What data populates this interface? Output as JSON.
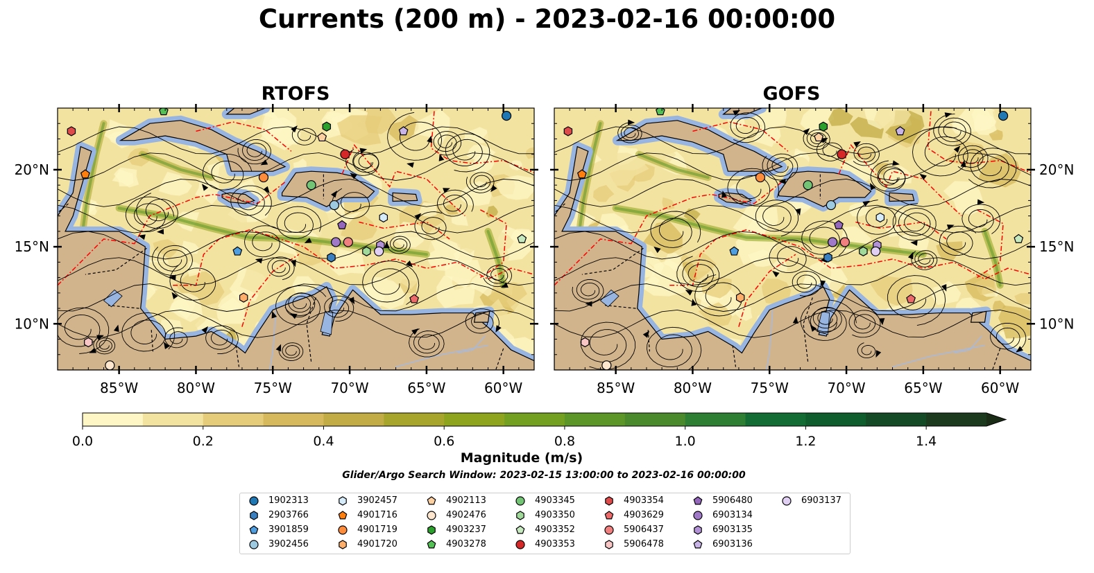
{
  "title": "Currents (200 m) - 2023-02-16 00:00:00",
  "panels": [
    {
      "title": "RTOFS"
    },
    {
      "title": "GOFS"
    }
  ],
  "colors": {
    "ocean_scale": [
      "#fef6c4",
      "#f3e3a0",
      "#e5cc7a",
      "#d6b95c",
      "#c2ac45",
      "#a8a52c",
      "#8ea41e",
      "#74a022",
      "#5c9528",
      "#4a8a2c",
      "#2e7f34",
      "#146c35",
      "#0f5c2c",
      "#154a26",
      "#1c3a1e",
      "#1a2b16"
    ],
    "land": "#d2b48c",
    "shallow": "#98b4e0",
    "eez": "#ff0000",
    "river": "#a9b9d8"
  },
  "chart_data": {
    "type": "map",
    "projection": "PlateCarree",
    "extent": {
      "lon": [
        -89,
        -58
      ],
      "lat": [
        7,
        24
      ]
    },
    "x_ticks": [
      "85°W",
      "80°W",
      "75°W",
      "70°W",
      "65°W",
      "60°W"
    ],
    "x_tick_values": [
      -85,
      -80,
      -75,
      -70,
      -65,
      -60
    ],
    "y_ticks": [
      "20°N",
      "15°N",
      "10°N"
    ],
    "y_tick_values": [
      20,
      15,
      10
    ],
    "colorbar": {
      "label": "Magnitude (m/s)",
      "range": [
        0,
        1.5
      ],
      "step": 0.1,
      "ticks": [
        "0.0",
        "0.2",
        "0.4",
        "0.6",
        "0.8",
        "1.0",
        "1.2",
        "1.4"
      ],
      "tick_values": [
        0,
        0.2,
        0.4,
        0.6,
        0.8,
        1.0,
        1.2,
        1.4
      ],
      "extend": "max"
    },
    "search_window": "Glider/Argo Search Window: 2023-02-15 13:00:00 to 2023-02-16 00:00:00",
    "floats": [
      {
        "id": "1902313",
        "marker": "circle",
        "color": "#1f77b4",
        "lon": -59.8,
        "lat": 23.5
      },
      {
        "id": "2903766",
        "marker": "hexagon",
        "color": "#3a7fc0",
        "lon": -71.2,
        "lat": 14.3
      },
      {
        "id": "3901859",
        "marker": "pentagon",
        "color": "#4f9fe0",
        "lon": -77.3,
        "lat": 14.7
      },
      {
        "id": "3902456",
        "marker": "circle",
        "color": "#9ecae1",
        "lon": -71.0,
        "lat": 17.7
      },
      {
        "id": "3902457",
        "marker": "hexagon",
        "color": "#d6ecfa",
        "lon": -67.8,
        "lat": 16.9
      },
      {
        "id": "4901716",
        "marker": "pentagon",
        "color": "#ff7f0e",
        "lon": -87.2,
        "lat": 19.7
      },
      {
        "id": "4901719",
        "marker": "circle",
        "color": "#fd8d3c",
        "lon": -75.6,
        "lat": 19.5
      },
      {
        "id": "4901720",
        "marker": "hexagon",
        "color": "#fdae6b",
        "lon": -76.9,
        "lat": 11.7
      },
      {
        "id": "4902113",
        "marker": "pentagon",
        "color": "#fdd0a2",
        "lon": -71.8,
        "lat": 22.1
      },
      {
        "id": "4902476",
        "marker": "circle",
        "color": "#fee6ce",
        "lon": -85.6,
        "lat": 7.3
      },
      {
        "id": "4903237",
        "marker": "hexagon",
        "color": "#2ca02c",
        "lon": -71.5,
        "lat": 22.8
      },
      {
        "id": "4903278",
        "marker": "pentagon",
        "color": "#55c055",
        "lon": -82.1,
        "lat": 23.8
      },
      {
        "id": "4903345",
        "marker": "circle",
        "color": "#74c476",
        "lon": -72.5,
        "lat": 19.0
      },
      {
        "id": "4903350",
        "marker": "hexagon",
        "color": "#a1d99b",
        "lon": -68.9,
        "lat": 14.7
      },
      {
        "id": "4903352",
        "marker": "pentagon",
        "color": "#c7e9c0",
        "lon": -58.8,
        "lat": 15.5
      },
      {
        "id": "4903353",
        "marker": "circle",
        "color": "#d62728",
        "lon": -70.3,
        "lat": 21.0
      },
      {
        "id": "4903354",
        "marker": "hexagon",
        "color": "#de4b4b",
        "lon": -88.1,
        "lat": 22.5
      },
      {
        "id": "4903629",
        "marker": "pentagon",
        "color": "#ec6a6a",
        "lon": -65.8,
        "lat": 11.6
      },
      {
        "id": "5906437",
        "marker": "circle",
        "color": "#f08080",
        "lon": -70.1,
        "lat": 15.3
      },
      {
        "id": "5906478",
        "marker": "hexagon",
        "color": "#f9c6c6",
        "lon": -87.0,
        "lat": 8.8
      },
      {
        "id": "5906480",
        "marker": "pentagon",
        "color": "#9467bd",
        "lon": -70.5,
        "lat": 16.4
      },
      {
        "id": "6903134",
        "marker": "circle",
        "color": "#a07ac8",
        "lon": -70.9,
        "lat": 15.3
      },
      {
        "id": "6903135",
        "marker": "hexagon",
        "color": "#b291d6",
        "lon": -68.0,
        "lat": 15.1
      },
      {
        "id": "6903136",
        "marker": "pentagon",
        "color": "#c8b4e6",
        "lon": -66.5,
        "lat": 22.5
      },
      {
        "id": "6903137",
        "marker": "circle",
        "color": "#e0cff2",
        "lon": -68.1,
        "lat": 14.7
      }
    ]
  },
  "legend": {
    "columns": 7,
    "entries": [
      "1902313",
      "2903766",
      "3901859",
      "3902456",
      "3902457",
      "4901716",
      "4901719",
      "4901720",
      "4902113",
      "4902476",
      "4903237",
      "4903278",
      "4903345",
      "4903350",
      "4903352",
      "4903353",
      "4903354",
      "4903629",
      "5906437",
      "5906478",
      "5906480",
      "6903134",
      "6903135",
      "6903136",
      "6903137"
    ]
  }
}
